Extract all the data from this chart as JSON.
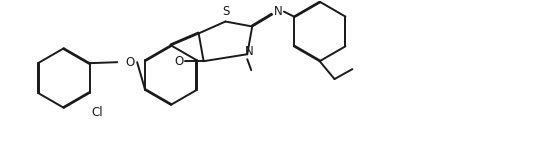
{
  "bg_color": "#ffffff",
  "line_color": "#1a1a1a",
  "line_width": 1.4,
  "dbo": 0.008,
  "font_size": 8.5,
  "figsize": [
    5.56,
    1.68
  ],
  "dpi": 100,
  "xlim": [
    0,
    5.56
  ],
  "ylim": [
    0,
    1.68
  ]
}
